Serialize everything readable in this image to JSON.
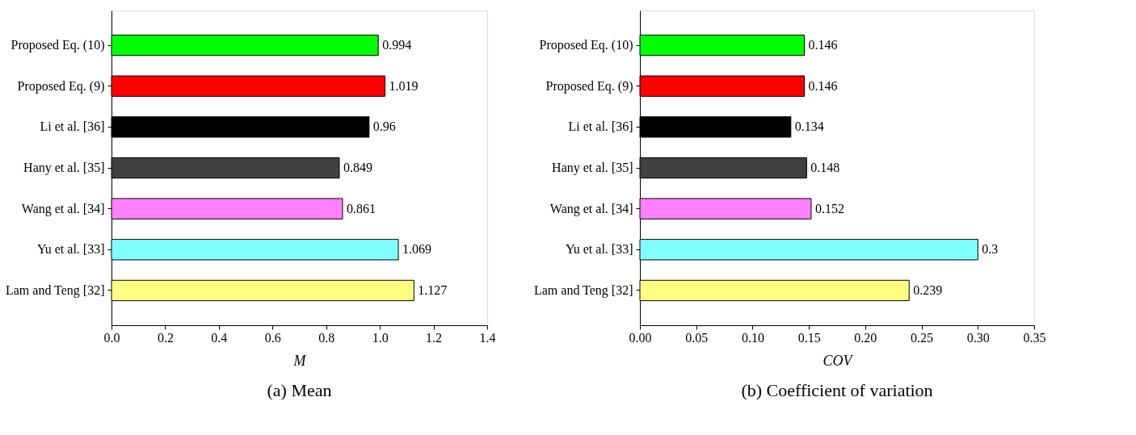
{
  "chart_data": [
    {
      "type": "bar",
      "orientation": "horizontal",
      "title": "(a) Mean",
      "xlabel": "M",
      "categories": [
        "Proposed Eq. (10)",
        "Proposed Eq. (9)",
        "Li et al. [36]",
        "Hany et al. [35]",
        "Wang et al. [34]",
        "Yu et al. [33]",
        "Lam and Teng [32]"
      ],
      "values": [
        0.994,
        1.019,
        0.96,
        0.849,
        0.861,
        1.069,
        1.127
      ],
      "colors": [
        "#00ff00",
        "#ff0000",
        "#000000",
        "#404040",
        "#ff80ff",
        "#80ffff",
        "#ffff80"
      ],
      "xlim": [
        0,
        1.4
      ],
      "xticks": [
        {
          "value": 0,
          "label": "0.0"
        },
        {
          "value": 0.2,
          "label": "0.2"
        },
        {
          "value": 0.4,
          "label": "0.4"
        },
        {
          "value": 0.6,
          "label": "0.6"
        },
        {
          "value": 0.8,
          "label": "0.8"
        },
        {
          "value": 1.0,
          "label": "1.0"
        },
        {
          "value": 1.2,
          "label": "1.2"
        },
        {
          "value": 1.4,
          "label": "1.4"
        }
      ],
      "data_labels": true,
      "grid": false,
      "legend": false
    },
    {
      "type": "bar",
      "orientation": "horizontal",
      "title": "(b) Coefficient of variation",
      "xlabel": "COV",
      "categories": [
        "Proposed Eq. (10)",
        "Proposed Eq. (9)",
        "Li et al. [36]",
        "Hany et al. [35]",
        "Wang et al. [34]",
        "Yu et al. [33]",
        "Lam and Teng [32]"
      ],
      "values": [
        0.146,
        0.146,
        0.134,
        0.148,
        0.152,
        0.3,
        0.239
      ],
      "colors": [
        "#00ff00",
        "#ff0000",
        "#000000",
        "#404040",
        "#ff80ff",
        "#80ffff",
        "#ffff80"
      ],
      "xlim": [
        0,
        0.35
      ],
      "xticks": [
        {
          "value": 0,
          "label": "0.00"
        },
        {
          "value": 0.05,
          "label": "0.05"
        },
        {
          "value": 0.1,
          "label": "0.10"
        },
        {
          "value": 0.15,
          "label": "0.15"
        },
        {
          "value": 0.2,
          "label": "0.20"
        },
        {
          "value": 0.25,
          "label": "0.25"
        },
        {
          "value": 0.3,
          "label": "0.30"
        },
        {
          "value": 0.35,
          "label": "0.35"
        }
      ],
      "data_labels": true,
      "grid": false,
      "legend": false
    }
  ]
}
